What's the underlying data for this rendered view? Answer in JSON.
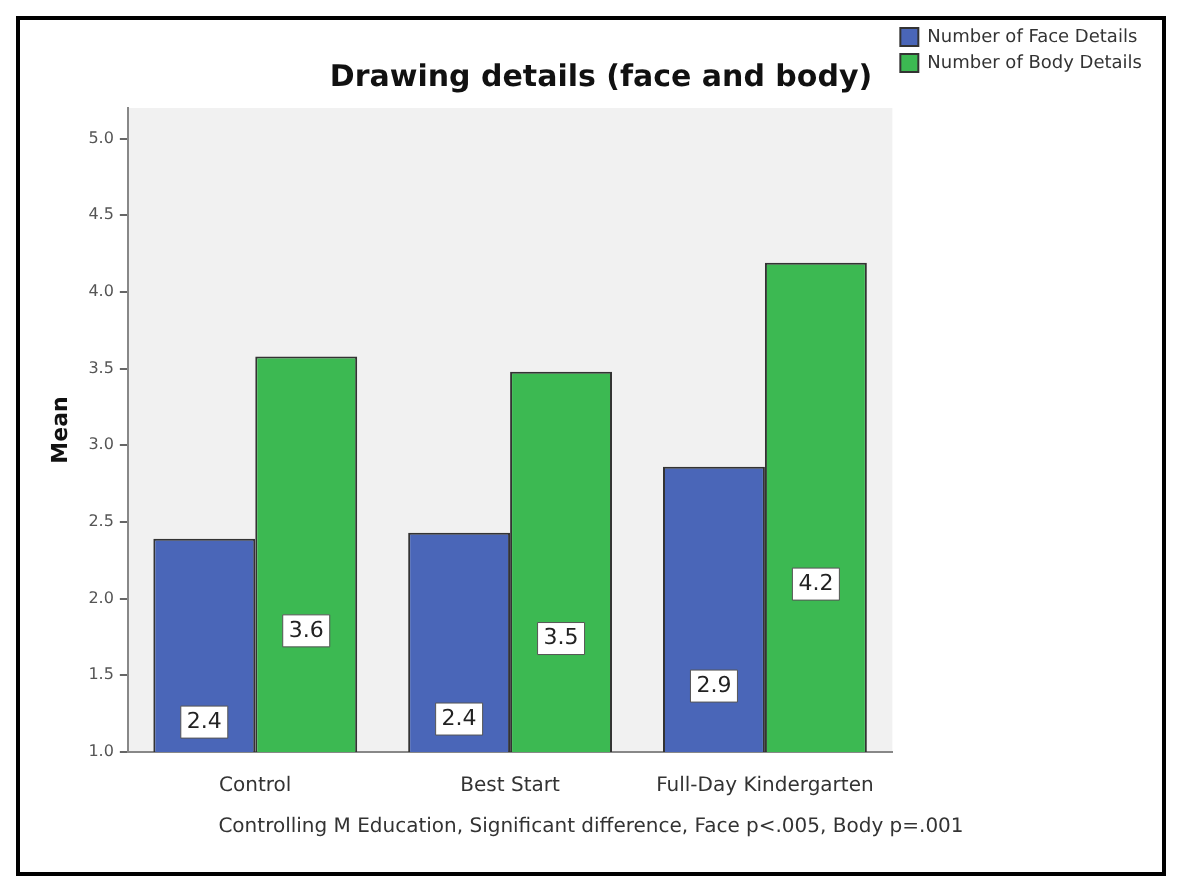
{
  "chart_data": {
    "type": "bar",
    "title": "Drawing details (face and body)",
    "ylabel": "Mean",
    "categories": [
      "Control",
      "Best Start",
      "Full-Day Kindergarten"
    ],
    "series": [
      {
        "name": "Number of Face Details",
        "color": "#4a66b8",
        "values": [
          2.39,
          2.43,
          2.86
        ],
        "value_labels": [
          "2.4",
          "2.4",
          "2.9"
        ]
      },
      {
        "name": "Number of Body Details",
        "color": "#3cb952",
        "values": [
          3.58,
          3.48,
          4.19
        ],
        "value_labels": [
          "3.6",
          "3.5",
          "4.2"
        ]
      }
    ],
    "ylim": [
      1,
      5.2
    ],
    "yticks": [
      {
        "value": 1,
        "label": "1.0"
      },
      {
        "value": 1.5,
        "label": "1.5"
      },
      {
        "value": 2,
        "label": "2.0"
      },
      {
        "value": 2.5,
        "label": "2.5"
      },
      {
        "value": 3,
        "label": "3.0"
      },
      {
        "value": 3.5,
        "label": "3.5"
      },
      {
        "value": 4,
        "label": "4.0"
      },
      {
        "value": 4.5,
        "label": "4.5"
      },
      {
        "value": 5,
        "label": "5.0"
      }
    ],
    "grid": false,
    "legend": "top right",
    "annotations": [
      "Controlling M Education, Significant difference, Face p<.005, Body p=.001"
    ]
  }
}
